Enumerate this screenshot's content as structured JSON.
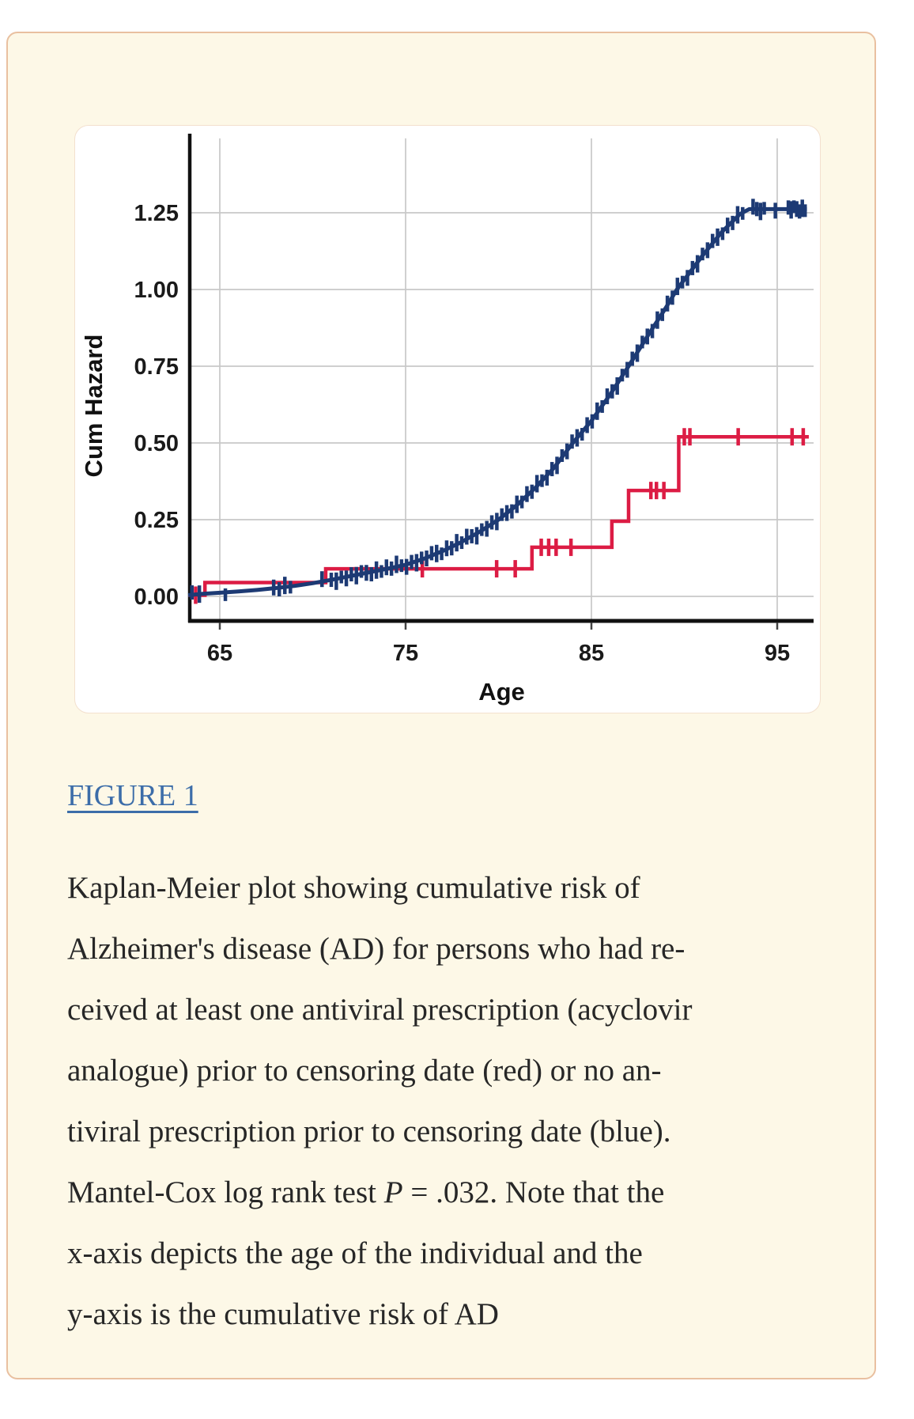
{
  "card": {
    "background": "#fdf8e7",
    "border_color": "#e9c0a0"
  },
  "figure_link": {
    "label": "FIGURE 1",
    "color": "#3c6da9"
  },
  "caption": {
    "text_color": "#272727",
    "lines": [
      [
        {
          "t": "Kaplan-Meier plot showing cumulative risk of",
          "i": false
        }
      ],
      [
        {
          "t": "Alzheimer's disease (AD) for persons who had re-",
          "i": false
        }
      ],
      [
        {
          "t": "ceived at least one antiviral prescription (acyclovir",
          "i": false
        }
      ],
      [
        {
          "t": "analogue) prior to censoring date (red) or no an-",
          "i": false
        }
      ],
      [
        {
          "t": "tiviral prescription prior to censoring date (blue).",
          "i": false
        }
      ],
      [
        {
          "t": "Mantel-Cox log rank test ",
          "i": false
        },
        {
          "t": "P",
          "i": true
        },
        {
          "t": " = .032. Note that the",
          "i": false
        }
      ],
      [
        {
          "t": "x-axis depicts the age of the individual and the",
          "i": false
        }
      ],
      [
        {
          "t": "y-axis is the cumulative risk of AD",
          "i": false
        }
      ]
    ]
  },
  "chart_data": {
    "type": "line",
    "subtype": "kaplan-meier-cumulative-hazard",
    "title": "",
    "xlabel": "Age",
    "ylabel": "Cum Hazard",
    "xlim": [
      63.3,
      96.9
    ],
    "ylim": [
      -0.08,
      1.54
    ],
    "x_ticks": [
      65,
      75,
      85,
      95
    ],
    "y_ticks": [
      0,
      0.25,
      0.5,
      0.75,
      1.0,
      1.25
    ],
    "grid": true,
    "grid_color": "#c8c8c8",
    "axis_color": "#111111",
    "tick_label_color": "#1a1a1a",
    "series": [
      {
        "name": "No antiviral prescription prior to censoring date",
        "color": "#1d3a74",
        "kind": "curve",
        "points": [
          [
            63.3,
            0.004
          ],
          [
            64,
            0.008
          ],
          [
            65,
            0.012
          ],
          [
            66,
            0.016
          ],
          [
            67,
            0.021
          ],
          [
            68,
            0.027
          ],
          [
            69,
            0.034
          ],
          [
            70,
            0.043
          ],
          [
            71,
            0.054
          ],
          [
            72,
            0.066
          ],
          [
            73,
            0.078
          ],
          [
            74,
            0.09
          ],
          [
            75,
            0.103
          ],
          [
            76,
            0.123
          ],
          [
            77,
            0.148
          ],
          [
            78,
            0.177
          ],
          [
            79,
            0.211
          ],
          [
            80,
            0.25
          ],
          [
            81,
            0.298
          ],
          [
            82,
            0.355
          ],
          [
            83,
            0.42
          ],
          [
            84,
            0.5
          ],
          [
            85,
            0.572
          ],
          [
            86,
            0.657
          ],
          [
            87,
            0.75
          ],
          [
            88,
            0.846
          ],
          [
            89,
            0.94
          ],
          [
            89.6,
            1.0
          ],
          [
            90,
            1.032
          ],
          [
            91,
            1.112
          ],
          [
            92,
            1.186
          ],
          [
            93,
            1.246
          ],
          [
            93.5,
            1.262
          ],
          [
            96.6,
            1.262
          ]
        ],
        "censor_ages_sparse": [
          63.5,
          63.9,
          65.3,
          67.9,
          68.2,
          68.5,
          68.8,
          70.5
        ],
        "censor_dense": {
          "from": 71.0,
          "to": 93.4,
          "step": 0.27
        },
        "censor_plateau": [
          93.7,
          93.9,
          94.1,
          94.3,
          94.9,
          95.6,
          95.75,
          95.9,
          96.05,
          96.2,
          96.35,
          96.5
        ]
      },
      {
        "name": "At least one antiviral prescription prior to censoring date",
        "color": "#dc1c44",
        "kind": "step",
        "steps": [
          [
            63.3,
            0.004
          ],
          [
            64.2,
            0.045
          ],
          [
            70.7,
            0.09
          ],
          [
            81.8,
            0.16
          ],
          [
            86.1,
            0.245
          ],
          [
            87.0,
            0.345
          ],
          [
            89.7,
            0.52
          ]
        ],
        "end_age": 96.7,
        "censor_ages": [
          63.7,
          75.9,
          79.9,
          80.9,
          82.3,
          82.7,
          83.1,
          83.9,
          88.2,
          88.5,
          88.9,
          90.0,
          90.3,
          92.9,
          95.8,
          96.4
        ]
      }
    ],
    "stats_annotation": "Mantel-Cox log rank test P = .032"
  }
}
